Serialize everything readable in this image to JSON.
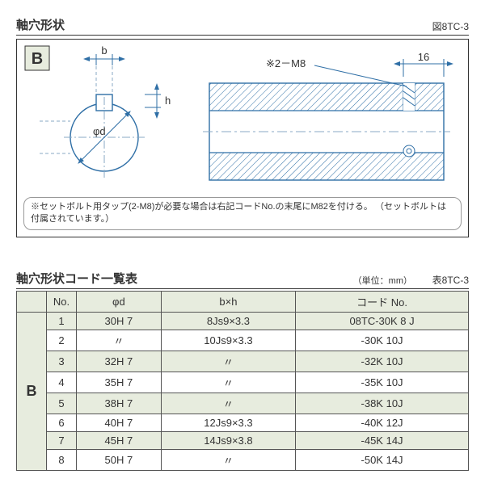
{
  "figure": {
    "title": "軸穴形状",
    "label": "図8TC-3",
    "badge": "B",
    "dim_b": "b",
    "dim_h": "h",
    "dim_phi_d": "φd",
    "dim_16": "16",
    "callout": "※2－M8",
    "note": "※セットボルト用タップ(2-M8)が必要な場合は右記コードNo.の末尾にM82を付ける。\n（セットボルトは付属されています。）",
    "colors": {
      "stroke": "#2f6fa6",
      "hatch": "#2f6fa6",
      "thin": "#8aa9c4",
      "badge_bg": "#e7ecde",
      "text": "#333333"
    }
  },
  "table": {
    "title": "軸穴形状コード一覧表",
    "unit": "（単位：mm）",
    "label": "表8TC-3",
    "side": "B",
    "columns": [
      "No.",
      "φd",
      "b×h",
      "コード No."
    ],
    "rows": [
      {
        "no": "1",
        "d": "30H 7",
        "bh": "8Js9×3.3",
        "code": "08TC-30K 8 J",
        "band": true
      },
      {
        "no": "2",
        "d": "〃",
        "bh": "10Js9×3.3",
        "code": "-30K 10J",
        "band": false
      },
      {
        "no": "3",
        "d": "32H 7",
        "bh": "〃",
        "code": "-32K 10J",
        "band": true
      },
      {
        "no": "4",
        "d": "35H 7",
        "bh": "〃",
        "code": "-35K 10J",
        "band": false
      },
      {
        "no": "5",
        "d": "38H 7",
        "bh": "〃",
        "code": "-38K 10J",
        "band": true
      },
      {
        "no": "6",
        "d": "40H 7",
        "bh": "12Js9×3.3",
        "code": "-40K 12J",
        "band": false
      },
      {
        "no": "7",
        "d": "45H 7",
        "bh": "14Js9×3.8",
        "code": "-45K 14J",
        "band": true
      },
      {
        "no": "8",
        "d": "50H 7",
        "bh": "〃",
        "code": "-50K 14J",
        "band": false
      }
    ]
  }
}
